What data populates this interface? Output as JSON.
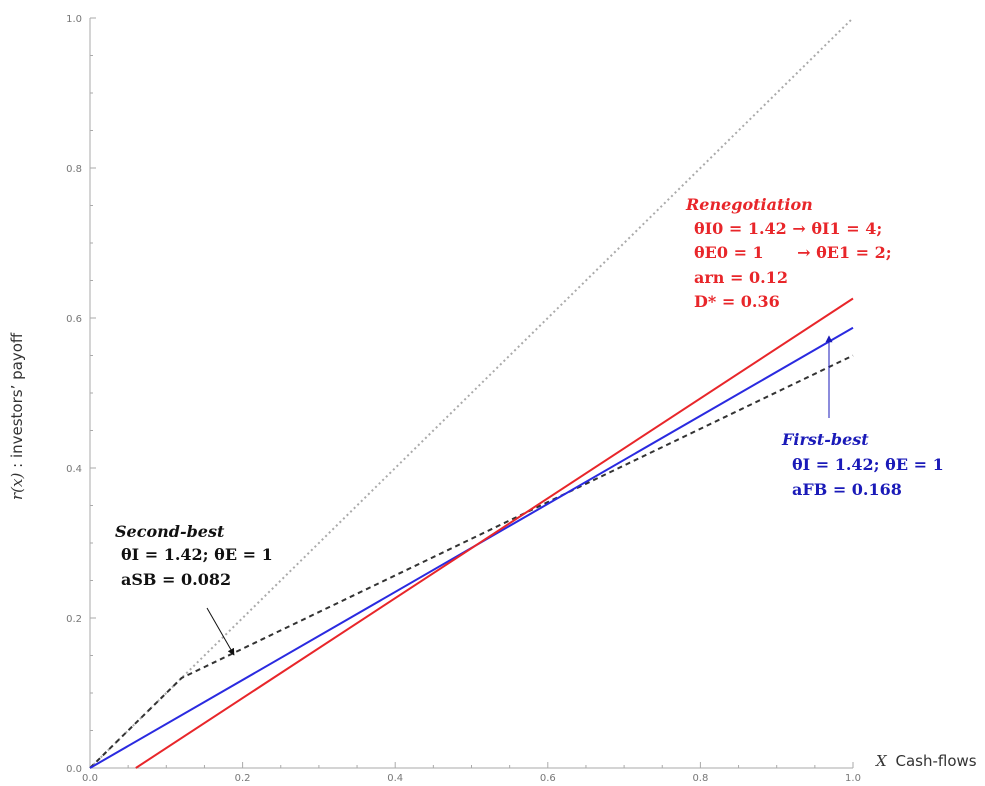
{
  "chart_data": {
    "type": "line",
    "xlabel_var": "X",
    "xlabel_text": "Cash-flows",
    "ylabel_var": "r(x)",
    "ylabel_text": ": investors’ payoff",
    "xlim": [
      0,
      1
    ],
    "ylim": [
      0,
      1
    ],
    "x_ticks": [
      "0.0",
      "0.2",
      "0.4",
      "0.6",
      "0.8",
      "1.0"
    ],
    "y_ticks": [
      "0.0",
      "0.2",
      "0.4",
      "0.6",
      "0.8",
      "1.0"
    ],
    "grid": false,
    "series": [
      {
        "key": "diagonal",
        "style": "dotted",
        "color": "#aaaaaa",
        "x": [
          0,
          1
        ],
        "y": [
          0,
          1
        ]
      },
      {
        "key": "second-best",
        "style": "dashed",
        "color": "#333333",
        "x": [
          0,
          0.12,
          1
        ],
        "y": [
          0,
          0.12,
          0.55
        ]
      },
      {
        "key": "first-best",
        "style": "solid",
        "color": "#2a2ae0",
        "x": [
          0,
          1
        ],
        "y": [
          0,
          0.587
        ]
      },
      {
        "key": "renegotiation",
        "style": "solid",
        "color": "#e8262a",
        "x": [
          0.06,
          1
        ],
        "y": [
          0,
          0.626
        ]
      }
    ],
    "annotations": {
      "renegotiation": {
        "color": "#e8262a",
        "title": "Renegotiation",
        "lines": [
          "θI0 = 1.42 → θI1 = 4;",
          "θE0 = 1      → θE1 = 2;",
          "arn = 0.12",
          "D* = 0.36"
        ]
      },
      "first_best": {
        "color": "#1a1ab8",
        "title": "First-best",
        "lines": [
          "θI = 1.42; θE = 1",
          "aFB = 0.168"
        ]
      },
      "second_best": {
        "color": "#111111",
        "title": "Second-best",
        "lines": [
          "θI = 1.42; θE = 1",
          "aSB = 0.082"
        ]
      }
    }
  }
}
